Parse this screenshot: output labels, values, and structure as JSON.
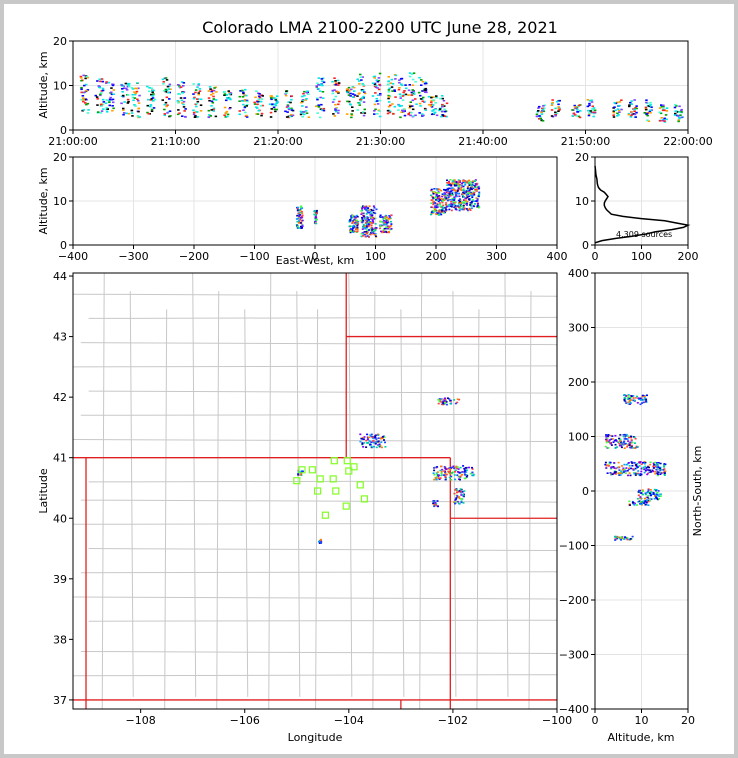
{
  "title": "Colorado LMA 2100-2200 UTC June 28, 2021",
  "colors": {
    "state_border": "#e02020",
    "county_border": "#c8c8c8",
    "station_marker": "#80ff20",
    "grid": "#e4e4e4",
    "profile_line": "#000000"
  },
  "chart_data": [
    {
      "id": "time_height",
      "type": "scatter",
      "xlabel": "",
      "ylabel": "Altitude, km",
      "xlim": [
        "21:00:00",
        "22:00:00"
      ],
      "ylim": [
        0,
        20
      ],
      "xticks": [
        "21:00:00",
        "21:10:00",
        "21:20:00",
        "21:30:00",
        "21:40:00",
        "21:50:00",
        "22:00:00"
      ],
      "yticks": [
        0,
        10,
        20
      ],
      "grid": true,
      "columns": [
        {
          "t": 1.0,
          "lo": 4,
          "hi": 13
        },
        {
          "t": 2.5,
          "lo": 4,
          "hi": 12
        },
        {
          "t": 3.5,
          "lo": 4,
          "hi": 11
        },
        {
          "t": 5.0,
          "lo": 3,
          "hi": 11
        },
        {
          "t": 6.0,
          "lo": 3,
          "hi": 11
        },
        {
          "t": 7.5,
          "lo": 3,
          "hi": 10
        },
        {
          "t": 9.0,
          "lo": 3,
          "hi": 12
        },
        {
          "t": 10.5,
          "lo": 3,
          "hi": 11
        },
        {
          "t": 12.0,
          "lo": 3,
          "hi": 11
        },
        {
          "t": 13.5,
          "lo": 3,
          "hi": 10
        },
        {
          "t": 15.0,
          "lo": 3,
          "hi": 9
        },
        {
          "t": 16.5,
          "lo": 3,
          "hi": 10
        },
        {
          "t": 18.0,
          "lo": 3,
          "hi": 9
        },
        {
          "t": 19.5,
          "lo": 3,
          "hi": 8
        },
        {
          "t": 21.0,
          "lo": 3,
          "hi": 9
        },
        {
          "t": 22.5,
          "lo": 3,
          "hi": 9
        },
        {
          "t": 24.0,
          "lo": 3,
          "hi": 12
        },
        {
          "t": 25.5,
          "lo": 3,
          "hi": 12
        },
        {
          "t": 27.0,
          "lo": 3,
          "hi": 10
        },
        {
          "t": 28.0,
          "lo": 3,
          "hi": 13
        },
        {
          "t": 29.5,
          "lo": 3,
          "hi": 13
        },
        {
          "t": 31.0,
          "lo": 3,
          "hi": 13
        },
        {
          "t": 32.0,
          "lo": 3,
          "hi": 12
        },
        {
          "t": 33.0,
          "lo": 3,
          "hi": 13
        },
        {
          "t": 34.0,
          "lo": 3,
          "hi": 12
        },
        {
          "t": 35.0,
          "lo": 3,
          "hi": 8
        },
        {
          "t": 36.0,
          "lo": 3,
          "hi": 8
        },
        {
          "t": 45.5,
          "lo": 2,
          "hi": 6
        },
        {
          "t": 47.0,
          "lo": 3,
          "hi": 7
        },
        {
          "t": 49.0,
          "lo": 3,
          "hi": 6
        },
        {
          "t": 50.5,
          "lo": 3,
          "hi": 7
        },
        {
          "t": 53.0,
          "lo": 3,
          "hi": 7
        },
        {
          "t": 54.5,
          "lo": 3,
          "hi": 7
        },
        {
          "t": 56.0,
          "lo": 2,
          "hi": 7
        },
        {
          "t": 57.5,
          "lo": 2,
          "hi": 6
        },
        {
          "t": 59.0,
          "lo": 2,
          "hi": 6
        }
      ]
    },
    {
      "id": "ew_altitude",
      "type": "scatter",
      "xlabel": "East-West, km",
      "ylabel": "Altitude, km",
      "xlim": [
        -400,
        400
      ],
      "ylim": [
        0,
        20
      ],
      "xticks": [
        -400,
        -300,
        -200,
        -100,
        0,
        100,
        200,
        300,
        400
      ],
      "yticks": [
        0,
        10,
        20
      ],
      "grid": true,
      "clusters": [
        {
          "x0": -32,
          "x1": -22,
          "y0": 4,
          "y1": 9
        },
        {
          "x0": -3,
          "x1": 2,
          "y0": 5,
          "y1": 8
        },
        {
          "x0": 55,
          "x1": 70,
          "y0": 3,
          "y1": 7
        },
        {
          "x0": 75,
          "x1": 100,
          "y0": 2,
          "y1": 9
        },
        {
          "x0": 105,
          "x1": 125,
          "y0": 3,
          "y1": 7
        },
        {
          "x0": 190,
          "x1": 215,
          "y0": 7,
          "y1": 13
        },
        {
          "x0": 215,
          "x1": 270,
          "y0": 8,
          "y1": 15
        }
      ]
    },
    {
      "id": "altitude_histogram",
      "type": "line",
      "xlabel": "",
      "ylabel": "",
      "xlim": [
        0,
        200
      ],
      "ylim": [
        0,
        20
      ],
      "xticks": [
        0,
        100,
        200
      ],
      "yticks": [
        0,
        10,
        20
      ],
      "annotation": "4,309 sources",
      "counts": [
        [
          0,
          0.5
        ],
        [
          15,
          1.0
        ],
        [
          45,
          1.5
        ],
        [
          80,
          2.0
        ],
        [
          110,
          2.5
        ],
        [
          130,
          3.0
        ],
        [
          165,
          3.5
        ],
        [
          190,
          4.0
        ],
        [
          200,
          4.5
        ],
        [
          175,
          5.0
        ],
        [
          150,
          5.5
        ],
        [
          100,
          6.0
        ],
        [
          60,
          6.5
        ],
        [
          35,
          7.0
        ],
        [
          30,
          7.5
        ],
        [
          25,
          8.0
        ],
        [
          22,
          8.5
        ],
        [
          20,
          9.0
        ],
        [
          20,
          9.5
        ],
        [
          22,
          10.0
        ],
        [
          25,
          10.5
        ],
        [
          28,
          11.0
        ],
        [
          24,
          11.5
        ],
        [
          20,
          12.0
        ],
        [
          12,
          12.5
        ],
        [
          8,
          13.0
        ],
        [
          6,
          13.5
        ],
        [
          5,
          14.0
        ],
        [
          4,
          15.0
        ],
        [
          2,
          16.0
        ],
        [
          1,
          17.0
        ],
        [
          0,
          18.0
        ]
      ]
    },
    {
      "id": "plan_view",
      "type": "scatter",
      "xlabel": "Longitude",
      "ylabel": "Latitude",
      "xlim": [
        -109.3,
        -100
      ],
      "ylim": [
        36.85,
        44.05
      ],
      "xticks": [
        -108,
        -106,
        -104,
        -102,
        -100
      ],
      "yticks": [
        37,
        38,
        39,
        40,
        41,
        42,
        43,
        44
      ],
      "clusters": [
        {
          "lon0": -102.3,
          "lon1": -101.9,
          "lat0": 41.88,
          "lat1": 42.0
        },
        {
          "lon0": -103.8,
          "lon1": -103.3,
          "lat0": 41.18,
          "lat1": 41.4
        },
        {
          "lon0": -102.4,
          "lon1": -101.6,
          "lat0": 40.65,
          "lat1": 40.88
        },
        {
          "lon0": -102.0,
          "lon1": -101.8,
          "lat0": 40.25,
          "lat1": 40.5
        },
        {
          "lon0": -102.4,
          "lon1": -102.3,
          "lat0": 40.2,
          "lat1": 40.3
        },
        {
          "lon0": -105.0,
          "lon1": -104.9,
          "lat0": 40.72,
          "lat1": 40.8
        },
        {
          "lon0": -104.6,
          "lon1": -104.55,
          "lat0": 39.6,
          "lat1": 39.66
        }
      ],
      "stations": [
        [
          -104.9,
          40.8
        ],
        [
          -105.0,
          40.62
        ],
        [
          -104.7,
          40.8
        ],
        [
          -104.55,
          40.65
        ],
        [
          -104.6,
          40.45
        ],
        [
          -104.28,
          40.95
        ],
        [
          -104.03,
          40.95
        ],
        [
          -103.9,
          40.85
        ],
        [
          -104.0,
          40.78
        ],
        [
          -104.3,
          40.65
        ],
        [
          -103.78,
          40.55
        ],
        [
          -104.25,
          40.45
        ],
        [
          -103.7,
          40.32
        ],
        [
          -104.05,
          40.2
        ],
        [
          -104.45,
          40.05
        ]
      ]
    },
    {
      "id": "altitude_ns",
      "type": "scatter",
      "xlabel": "Altitude, km",
      "ylabel": "North-South, km",
      "xlim": [
        0,
        20
      ],
      "ylim": [
        -400,
        400
      ],
      "xticks": [
        0,
        10,
        20
      ],
      "yticks": [
        -400,
        -300,
        -200,
        -100,
        0,
        100,
        200,
        300,
        400
      ],
      "grid": true,
      "clusters": [
        {
          "x0": 6,
          "x1": 11,
          "y0": 160,
          "y1": 178
        },
        {
          "x0": 2,
          "x1": 9,
          "y0": 80,
          "y1": 105
        },
        {
          "x0": 2,
          "x1": 15,
          "y0": 30,
          "y1": 55
        },
        {
          "x0": 9,
          "x1": 14,
          "y0": -15,
          "y1": 5
        },
        {
          "x0": 7,
          "x1": 12,
          "y0": -25,
          "y1": -15
        },
        {
          "x0": 4,
          "x1": 8,
          "y0": -90,
          "y1": -82
        }
      ]
    }
  ]
}
